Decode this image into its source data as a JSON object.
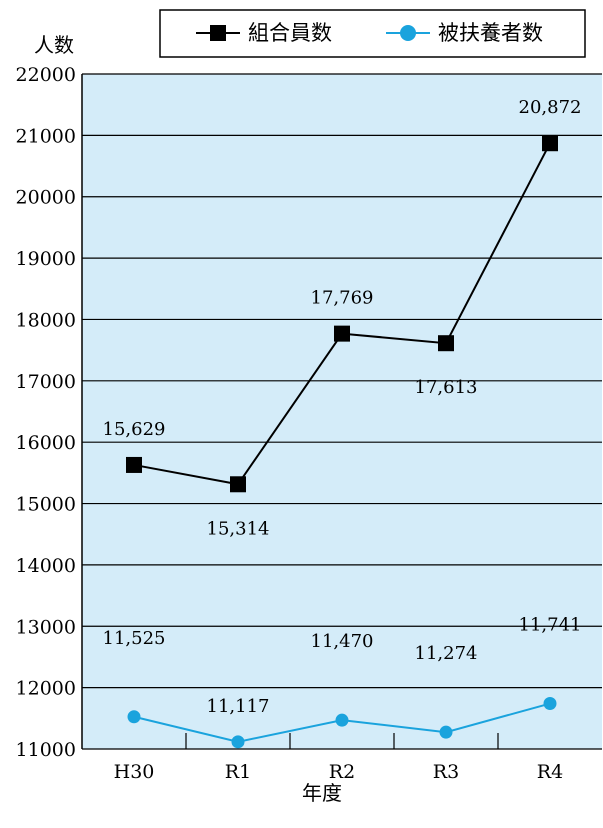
{
  "colors": {
    "plot_background": "#d4ecf9",
    "grid": "#000000",
    "members": "#000000",
    "dependents": "#1aa3dd"
  },
  "chart_data": {
    "type": "line",
    "categories": [
      "H30",
      "R1",
      "R2",
      "R3",
      "R4"
    ],
    "ylim": [
      11000,
      22000
    ],
    "ytick_step": 1000,
    "ylabel": "人数",
    "xlabel": "年度",
    "grid": true,
    "legend_position": "top",
    "series": [
      {
        "name": "組合員数",
        "marker": "square",
        "values": [
          15629,
          15314,
          17769,
          17613,
          20872
        ],
        "labels": [
          "15,629",
          "15,314",
          "17,769",
          "17,613",
          "20,872"
        ],
        "label_positions": [
          "above",
          "below",
          "above",
          "below",
          "above"
        ]
      },
      {
        "name": "被扶養者数",
        "marker": "circle",
        "values": [
          11525,
          11117,
          11470,
          11274,
          11741
        ],
        "labels": [
          "11,525",
          "11,117",
          "11,470",
          "11,274",
          "11,741"
        ],
        "label_positions": [
          "far-above",
          "above",
          "far-above",
          "far-above",
          "far-above"
        ]
      }
    ]
  }
}
